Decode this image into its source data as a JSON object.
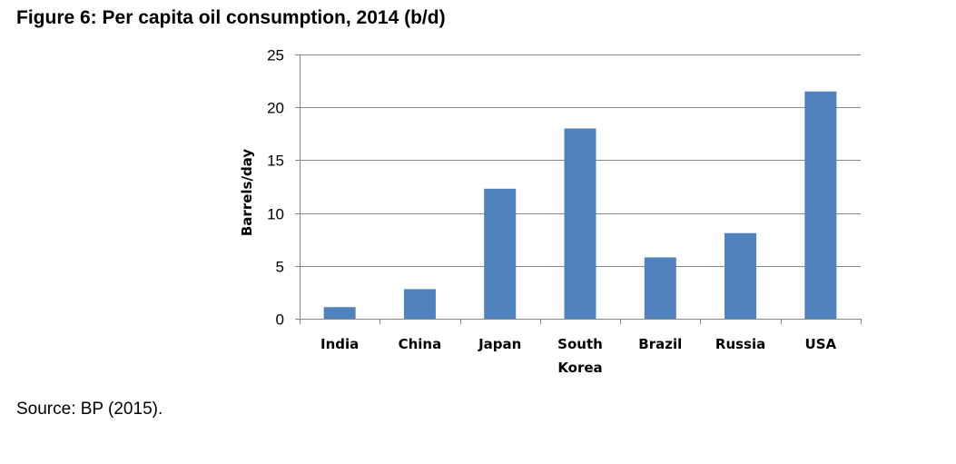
{
  "figure": {
    "title": "Figure 6: Per capita oil consumption, 2014 (b/d)",
    "source": "Source: BP (2015)."
  },
  "chart_data": {
    "type": "bar",
    "categories": [
      [
        "India"
      ],
      [
        "China"
      ],
      [
        "Japan"
      ],
      [
        "South",
        "Korea"
      ],
      [
        "Brazil"
      ],
      [
        "Russia"
      ],
      [
        "USA"
      ]
    ],
    "values": [
      1.1,
      2.8,
      12.3,
      18.0,
      5.8,
      8.1,
      21.5
    ],
    "ylabel": "Barrels/day",
    "ylim": [
      0,
      25
    ],
    "yticks": [
      0,
      5,
      10,
      15,
      20,
      25
    ],
    "grid": true,
    "legend": "none",
    "bar_color": "#4F81BD"
  }
}
